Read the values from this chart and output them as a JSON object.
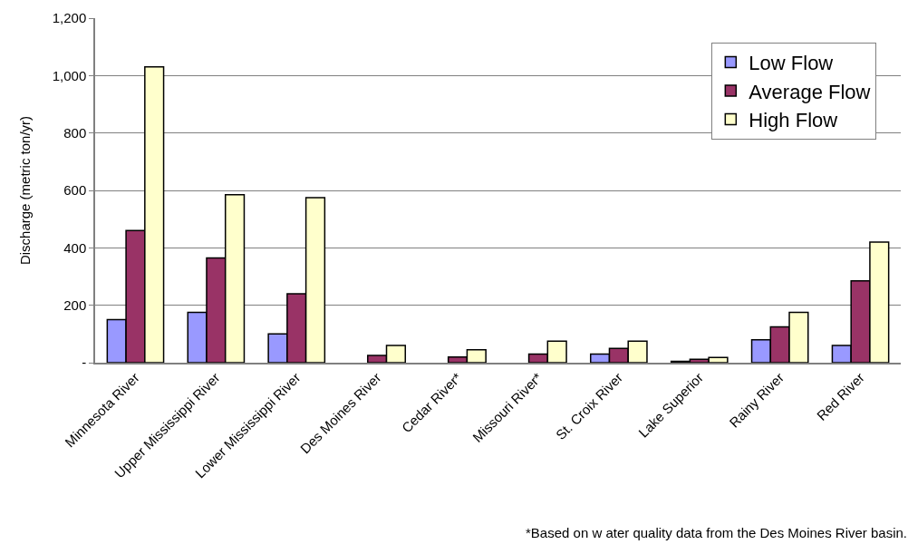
{
  "chart_data": {
    "type": "bar",
    "ylabel": "Discharge (metric ton/yr)",
    "categories": [
      "Minnesota River",
      "Upper Mississippi River",
      "Lower Mississippi River",
      "Des Moines River",
      "Cedar River*",
      "Missouri River*",
      "St. Croix River",
      "Lake Superior",
      "Rainy River",
      "Red River"
    ],
    "series": [
      {
        "name": "Low Flow",
        "color": "#9999ff",
        "values": [
          150,
          175,
          100,
          null,
          null,
          null,
          30,
          5,
          80,
          60
        ]
      },
      {
        "name": "Average Flow",
        "color": "#993366",
        "values": [
          460,
          365,
          240,
          25,
          20,
          30,
          50,
          12,
          125,
          285
        ]
      },
      {
        "name": "High Flow",
        "color": "#ffffcc",
        "values": [
          1030,
          585,
          575,
          60,
          45,
          75,
          75,
          18,
          175,
          420
        ]
      }
    ],
    "ylim": [
      0,
      1200
    ],
    "yticks": [
      {
        "value": 0,
        "label": "-"
      },
      200,
      400,
      600,
      800,
      {
        "value": 1000,
        "label": "1,000"
      },
      {
        "value": 1200,
        "label": "1,200"
      }
    ],
    "grid": "y",
    "legend": "top right",
    "annotations": [
      "*Based on w ater quality data from the Des Moines River basin."
    ]
  }
}
